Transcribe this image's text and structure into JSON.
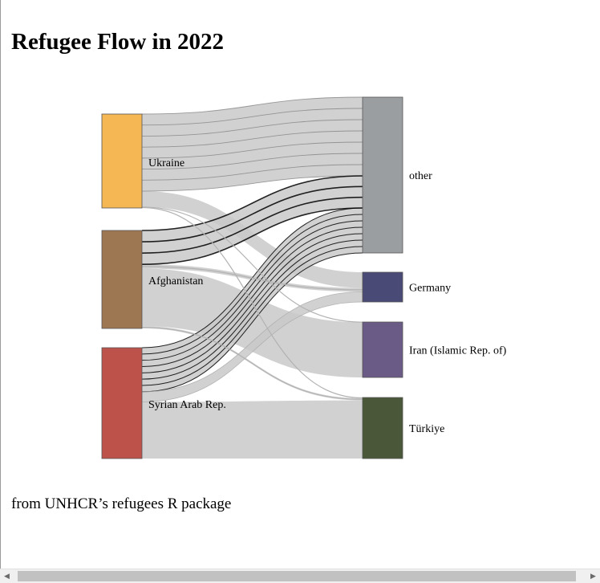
{
  "title": "Refugee Flow in 2022",
  "caption": "from UNHCR’s refugees R package",
  "chart_data": {
    "type": "sankey",
    "sources": [
      {
        "name": "Ukraine",
        "color": "#f4b753"
      },
      {
        "name": "Afghanistan",
        "color": "#9d7652"
      },
      {
        "name": "Syrian Arab Rep.",
        "color": "#bd524a"
      }
    ],
    "targets": [
      {
        "name": "other",
        "color": "#9b9ea1"
      },
      {
        "name": "Germany",
        "color": "#4a4a76"
      },
      {
        "name": "Iran (Islamic Rep. of)",
        "color": "#6a5a86"
      },
      {
        "name": "Türkiye",
        "color": "#4a5738"
      }
    ],
    "link_color": "#c9c9c9",
    "links": [
      {
        "source": "Ukraine",
        "target": "other",
        "value": 4.9
      },
      {
        "source": "Ukraine",
        "target": "Germany",
        "value": 1.0
      },
      {
        "source": "Ukraine",
        "target": "Iran (Islamic Rep. of)",
        "value": 0.02
      },
      {
        "source": "Ukraine",
        "target": "Türkiye",
        "value": 0.05
      },
      {
        "source": "Afghanistan",
        "target": "other",
        "value": 2.0
      },
      {
        "source": "Afghanistan",
        "target": "Germany",
        "value": 0.25
      },
      {
        "source": "Afghanistan",
        "target": "Iran (Islamic Rep. of)",
        "value": 3.4
      },
      {
        "source": "Afghanistan",
        "target": "Türkiye",
        "value": 0.13
      },
      {
        "source": "Syrian Arab Rep.",
        "target": "other",
        "value": 2.8
      },
      {
        "source": "Syrian Arab Rep.",
        "target": "Germany",
        "value": 0.65
      },
      {
        "source": "Syrian Arab Rep.",
        "target": "Türkiye",
        "value": 3.6
      }
    ]
  }
}
